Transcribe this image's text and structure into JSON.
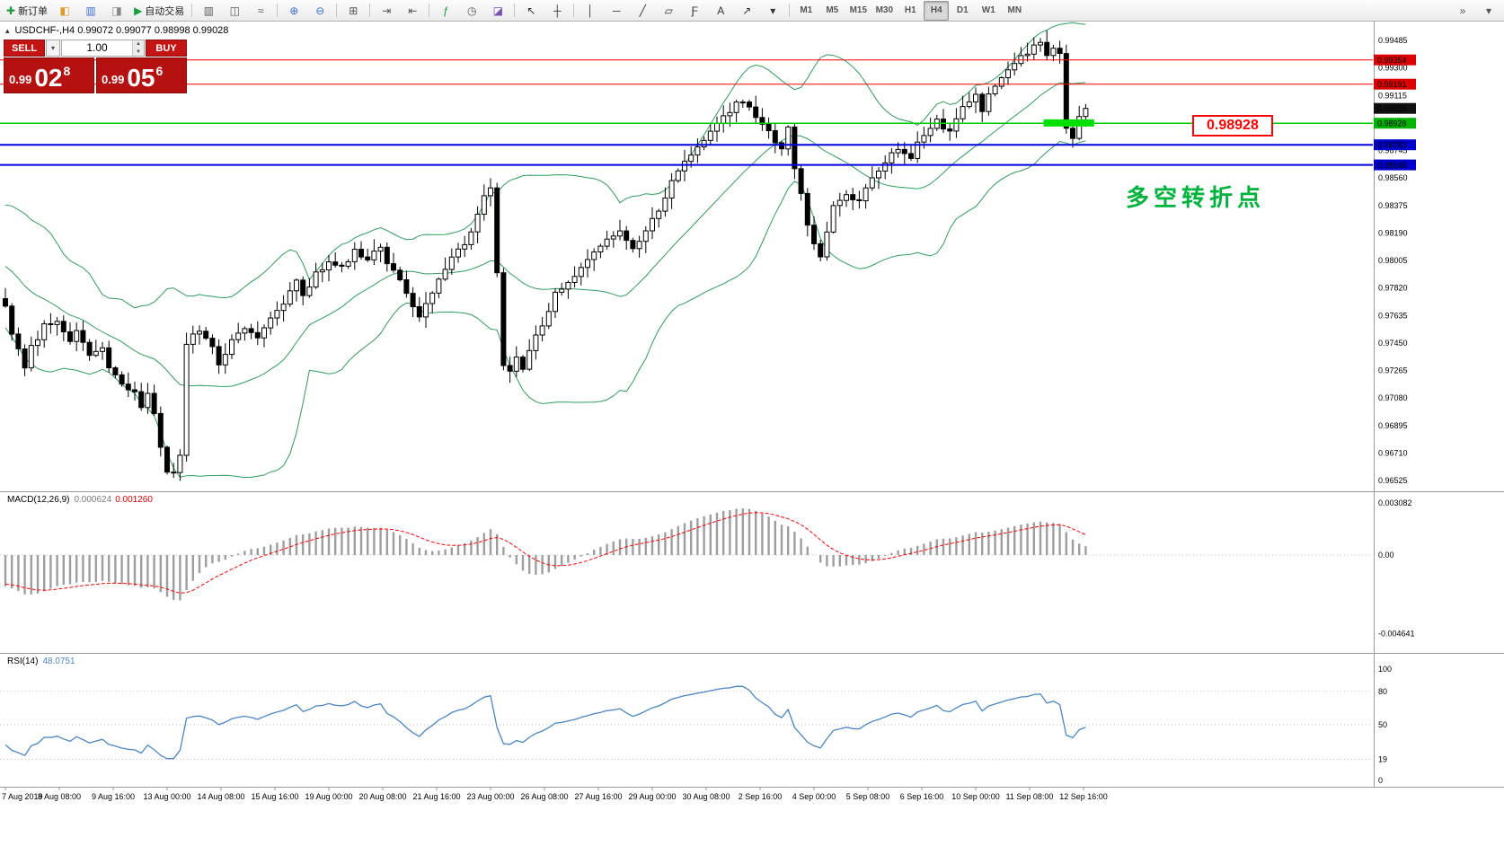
{
  "toolbar": {
    "groups": [
      {
        "items": [
          {
            "name": "new-order-button",
            "glyph": "✚",
            "glyph_color": "#1d9b3e",
            "label": "新订单"
          },
          {
            "name": "profiles-button",
            "glyph": "◧",
            "glyph_color": "#e09b2d"
          },
          {
            "name": "market-watch-button",
            "glyph": "▥",
            "glyph_color": "#3b6fd4"
          },
          {
            "name": "navigator-button",
            "glyph": "◨",
            "glyph_color": "#888888"
          },
          {
            "name": "autotrading-button",
            "glyph": "▶",
            "glyph_color": "#18a03c",
            "label": "自动交易"
          }
        ]
      },
      {
        "items": [
          {
            "name": "bar-chart-button",
            "glyph": "▥",
            "glyph_color": "#555555"
          },
          {
            "name": "candlestick-chart-button",
            "glyph": "◫",
            "glyph_color": "#555555"
          },
          {
            "name": "line-chart-button",
            "glyph": "≈",
            "glyph_color": "#555555"
          }
        ]
      },
      {
        "items": [
          {
            "name": "zoom-in-button",
            "glyph": "⊕",
            "glyph_color": "#3b6fd4"
          },
          {
            "name": "zoom-out-button",
            "glyph": "⊖",
            "glyph_color": "#3b6fd4"
          }
        ]
      },
      {
        "items": [
          {
            "name": "tile-windows-button",
            "glyph": "⊞",
            "glyph_color": "#555555"
          }
        ]
      },
      {
        "items": [
          {
            "name": "auto-scroll-button",
            "glyph": "⇥",
            "glyph_color": "#555555"
          },
          {
            "name": "chart-shift-button",
            "glyph": "⇤",
            "glyph_color": "#555555"
          }
        ]
      },
      {
        "items": [
          {
            "name": "indicators-button",
            "glyph": "ƒ",
            "glyph_color": "#1d9b3e"
          },
          {
            "name": "periods-button",
            "glyph": "◷",
            "glyph_color": "#555555"
          },
          {
            "name": "templates-button",
            "glyph": "◪",
            "glyph_color": "#7a4fb5"
          }
        ]
      },
      {
        "items": [
          {
            "name": "cursor-button",
            "glyph": "↖",
            "glyph_color": "#333333"
          },
          {
            "name": "crosshair-button",
            "glyph": "┼",
            "glyph_color": "#333333"
          }
        ]
      },
      {
        "items": [
          {
            "name": "vertical-line-button",
            "glyph": "│",
            "glyph_color": "#333333"
          },
          {
            "name": "horizontal-line-button",
            "glyph": "─",
            "glyph_color": "#333333"
          },
          {
            "name": "trendline-button",
            "glyph": "╱",
            "glyph_color": "#333333"
          },
          {
            "name": "channel-button",
            "glyph": "▱",
            "glyph_color": "#333333"
          },
          {
            "name": "fibonacci-button",
            "glyph": "Ƒ",
            "glyph_color": "#333333"
          },
          {
            "name": "text-button",
            "glyph": "A",
            "glyph_color": "#333333"
          },
          {
            "name": "arrow-button",
            "glyph": "↗",
            "glyph_color": "#333333"
          },
          {
            "name": "shapes-button",
            "glyph": "▾",
            "glyph_color": "#333333"
          }
        ]
      },
      {
        "timeframes": true,
        "items": [
          {
            "name": "tf-m1",
            "label": "M1"
          },
          {
            "name": "tf-m5",
            "label": "M5"
          },
          {
            "name": "tf-m15",
            "label": "M15"
          },
          {
            "name": "tf-m30",
            "label": "M30"
          },
          {
            "name": "tf-h1",
            "label": "H1"
          },
          {
            "name": "tf-h4",
            "label": "H4",
            "active": true
          },
          {
            "name": "tf-d1",
            "label": "D1"
          },
          {
            "name": "tf-w1",
            "label": "W1"
          },
          {
            "name": "tf-mn",
            "label": "MN"
          }
        ]
      },
      {
        "right": true,
        "items": [
          {
            "name": "toolbar-overflow-button",
            "glyph": "»",
            "glyph_color": "#555555"
          },
          {
            "name": "toolbar-more-button",
            "glyph": "▾",
            "glyph_color": "#555555"
          }
        ]
      }
    ]
  },
  "trade_panel": {
    "sell_label": "SELL",
    "buy_label": "BUY",
    "volume": "1.00",
    "sell_price": {
      "prefix": "0.99",
      "big": "02",
      "sup": "8"
    },
    "buy_price": {
      "prefix": "0.99",
      "big": "05",
      "sup": "6"
    }
  },
  "chart": {
    "symbol_line": "USDCHF-,H4  0.99072 0.99077 0.98998 0.99028",
    "chart_data": {
      "type": "candlestick",
      "symbol": "USDCHF-",
      "timeframe": "H4",
      "current_ohlc": {
        "open": 0.99072,
        "high": 0.99077,
        "low": 0.98998,
        "close": 0.99028
      },
      "note": "close_anchors are [candle_index, close_price] points read from the chart; candles interpolated between them"
    },
    "candles": 168,
    "close_anchors": [
      [
        0,
        0.9768
      ],
      [
        1,
        0.9752
      ],
      [
        3,
        0.9728
      ],
      [
        4,
        0.9742
      ],
      [
        6,
        0.9756
      ],
      [
        8,
        0.9758
      ],
      [
        10,
        0.9748
      ],
      [
        11,
        0.9753
      ],
      [
        13,
        0.9738
      ],
      [
        15,
        0.9743
      ],
      [
        16,
        0.973
      ],
      [
        18,
        0.9718
      ],
      [
        20,
        0.9712
      ],
      [
        21,
        0.97
      ],
      [
        22,
        0.9712
      ],
      [
        23,
        0.9696
      ],
      [
        24,
        0.9676
      ],
      [
        25,
        0.966
      ],
      [
        26,
        0.9657
      ],
      [
        27,
        0.9668
      ],
      [
        28,
        0.9746
      ],
      [
        30,
        0.9753
      ],
      [
        32,
        0.9742
      ],
      [
        33,
        0.9729
      ],
      [
        35,
        0.9746
      ],
      [
        37,
        0.9756
      ],
      [
        39,
        0.9748
      ],
      [
        41,
        0.9761
      ],
      [
        43,
        0.9773
      ],
      [
        45,
        0.9787
      ],
      [
        46,
        0.9776
      ],
      [
        48,
        0.9791
      ],
      [
        50,
        0.9801
      ],
      [
        52,
        0.9795
      ],
      [
        54,
        0.9807
      ],
      [
        56,
        0.9799
      ],
      [
        58,
        0.9811
      ],
      [
        59,
        0.98
      ],
      [
        61,
        0.9786
      ],
      [
        63,
        0.9768
      ],
      [
        64,
        0.9761
      ],
      [
        66,
        0.9779
      ],
      [
        68,
        0.9796
      ],
      [
        70,
        0.9807
      ],
      [
        72,
        0.9819
      ],
      [
        73,
        0.9833
      ],
      [
        74,
        0.9846
      ],
      [
        75,
        0.9851
      ],
      [
        76,
        0.9792
      ],
      [
        77,
        0.9731
      ],
      [
        78,
        0.9727
      ],
      [
        79,
        0.9737
      ],
      [
        80,
        0.9726
      ],
      [
        81,
        0.9741
      ],
      [
        83,
        0.9756
      ],
      [
        85,
        0.9779
      ],
      [
        87,
        0.9787
      ],
      [
        89,
        0.9796
      ],
      [
        91,
        0.9806
      ],
      [
        93,
        0.9816
      ],
      [
        95,
        0.9821
      ],
      [
        97,
        0.9809
      ],
      [
        99,
        0.9821
      ],
      [
        101,
        0.9833
      ],
      [
        103,
        0.9853
      ],
      [
        105,
        0.9866
      ],
      [
        107,
        0.9876
      ],
      [
        109,
        0.9886
      ],
      [
        111,
        0.9896
      ],
      [
        113,
        0.9906
      ],
      [
        114,
        0.9909
      ],
      [
        116,
        0.9897
      ],
      [
        118,
        0.9886
      ],
      [
        120,
        0.9876
      ],
      [
        121,
        0.9889
      ],
      [
        122,
        0.9863
      ],
      [
        123,
        0.9846
      ],
      [
        124,
        0.9826
      ],
      [
        125,
        0.9813
      ],
      [
        126,
        0.9801
      ],
      [
        127,
        0.9819
      ],
      [
        128,
        0.9836
      ],
      [
        130,
        0.9846
      ],
      [
        132,
        0.9839
      ],
      [
        134,
        0.9856
      ],
      [
        136,
        0.9866
      ],
      [
        138,
        0.9876
      ],
      [
        140,
        0.9871
      ],
      [
        142,
        0.9886
      ],
      [
        144,
        0.9894
      ],
      [
        146,
        0.9887
      ],
      [
        148,
        0.9903
      ],
      [
        150,
        0.9911
      ],
      [
        151,
        0.9899
      ],
      [
        152,
        0.9913
      ],
      [
        154,
        0.9923
      ],
      [
        156,
        0.9933
      ],
      [
        158,
        0.9941
      ],
      [
        160,
        0.9946
      ],
      [
        161,
        0.9937
      ],
      [
        162,
        0.9943
      ],
      [
        163,
        0.9939
      ],
      [
        164,
        0.9891
      ],
      [
        165,
        0.9881
      ],
      [
        166,
        0.9899
      ],
      [
        167,
        0.99028
      ]
    ],
    "y_axis": {
      "labels": [
        "0.99485",
        "0.99300",
        "0.99115",
        "0.98745",
        "0.98560",
        "0.98375",
        "0.98190",
        "0.98005",
        "0.97820",
        "0.97635",
        "0.97450",
        "0.97265",
        "0.97080",
        "0.96895",
        "0.96710",
        "0.96525"
      ],
      "tags": [
        {
          "label": "0.99354",
          "price": 0.99354,
          "color": "#dd0000"
        },
        {
          "label": "0.99191",
          "price": 0.99191,
          "color": "#dd0000"
        },
        {
          "label": "0.99028",
          "price": 0.99028,
          "color": "#111111"
        },
        {
          "label": "0.98928",
          "price": 0.98928,
          "color": "#00b400"
        },
        {
          "label": "0.98783",
          "price": 0.98783,
          "color": "#0000cc"
        },
        {
          "label": "0.98648",
          "price": 0.98648,
          "color": "#0000cc"
        }
      ]
    },
    "hlines": [
      {
        "price": 0.99354,
        "color": "#ff0000",
        "width": 1
      },
      {
        "price": 0.99191,
        "color": "#ff0000",
        "width": 1
      },
      {
        "price": 0.98928,
        "color": "#00cc00",
        "width": 1.5
      },
      {
        "price": 0.98783,
        "color": "#0000dd",
        "width": 2
      },
      {
        "price": 0.98648,
        "color": "#0000dd",
        "width": 2
      }
    ],
    "highlight": {
      "price": 0.9893,
      "from_candle": 160.5,
      "to_candle": 168.3,
      "color": "#00e000",
      "thickness": 8
    },
    "colors": {
      "candle_up": "#ffffff",
      "candle_down": "#000000",
      "candle_outline": "#000000",
      "bollinger": "#2e9e5b",
      "macd_histogram": "#9e9e9e",
      "macd_signal": "#ff0000",
      "rsi_line": "#4a86c8",
      "level_dotted": "#bbbbbb"
    }
  },
  "macd": {
    "title": "MACD(12,26,9)",
    "value1": "0.000624",
    "value2": "0.001260",
    "axis_labels": [
      "0.003082",
      "0.00",
      "-0.004641"
    ]
  },
  "rsi": {
    "title": "RSI(14)",
    "value": "48.0751",
    "axis_labels": [
      "100",
      "80",
      "50",
      "19",
      "0"
    ],
    "levels": [
      80,
      50,
      19
    ]
  },
  "time_axis": {
    "labels": [
      "7 Aug 2019",
      "8 Aug 08:00",
      "9 Aug 16:00",
      "13 Aug 00:00",
      "14 Aug 08:00",
      "15 Aug 16:00",
      "19 Aug 00:00",
      "20 Aug 08:00",
      "21 Aug 16:00",
      "23 Aug 00:00",
      "26 Aug 08:00",
      "27 Aug 16:00",
      "29 Aug 00:00",
      "30 Aug 08:00",
      "2 Sep 16:00",
      "4 Sep 00:00",
      "5 Sep 08:00",
      "6 Sep 16:00",
      "10 Sep 00:00",
      "11 Sep 08:00",
      "12 Sep 16:00"
    ]
  },
  "annotations": {
    "price_label": {
      "text": "0.98928"
    },
    "turning_point": {
      "text": "多空转折点"
    }
  }
}
